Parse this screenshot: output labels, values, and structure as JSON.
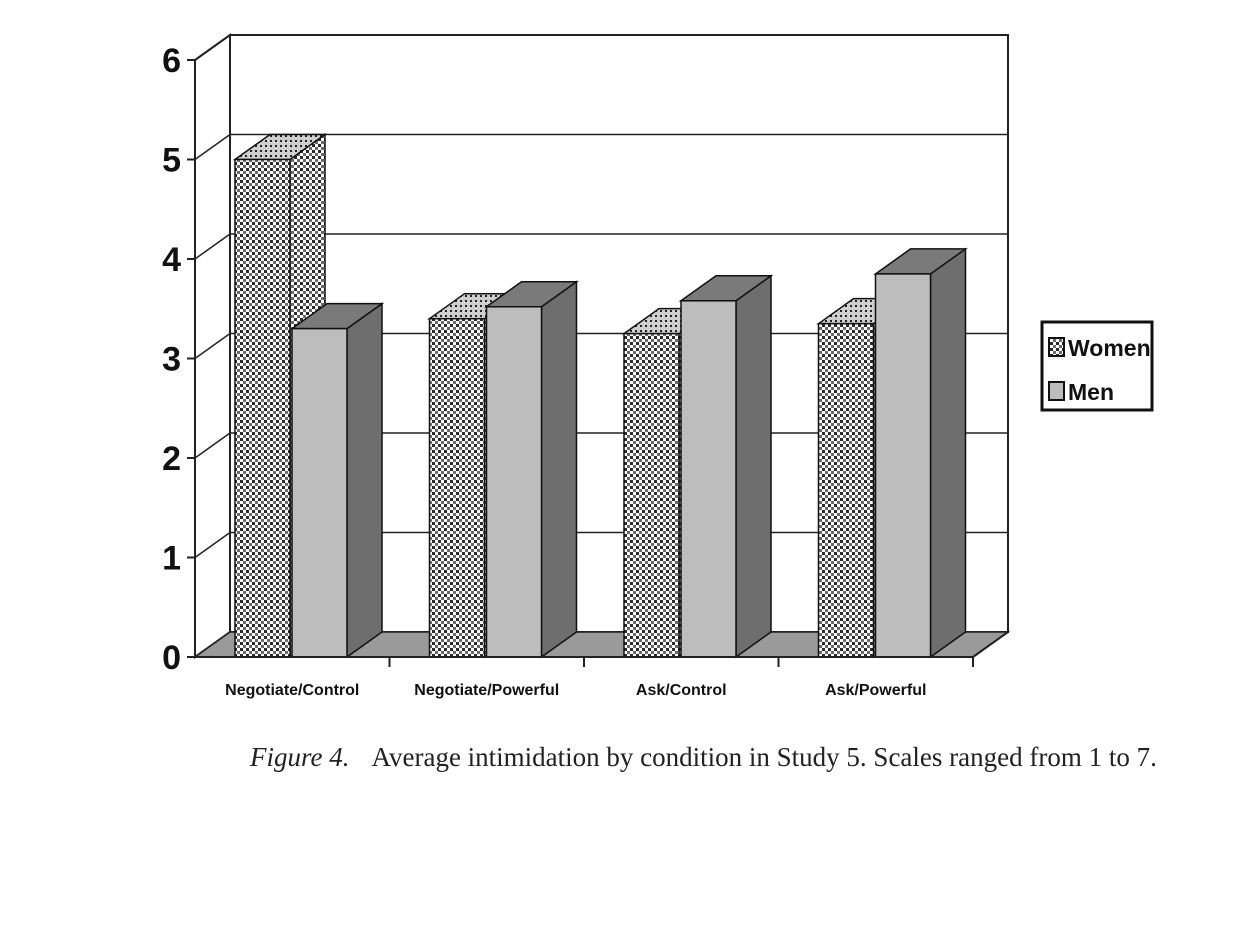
{
  "chart_data": {
    "type": "bar",
    "style": "3d-clustered-column",
    "categories": [
      "Negotiate/Control",
      "Negotiate/Powerful",
      "Ask/Control",
      "Ask/Powerful"
    ],
    "series": [
      {
        "name": "Women",
        "values": [
          5.0,
          3.4,
          3.25,
          3.35
        ],
        "pattern": "dotted",
        "color": "#ffffff"
      },
      {
        "name": "Men",
        "values": [
          3.3,
          3.52,
          3.58,
          3.85
        ],
        "pattern": "solid",
        "color": "#bdbdbd"
      }
    ],
    "ylim": [
      0,
      6
    ],
    "yticks": [
      "0",
      "1",
      "2",
      "3",
      "4",
      "5",
      "6"
    ],
    "grid": true,
    "legend_position": "right"
  },
  "caption": {
    "label": "Figure 4.",
    "text": "Average intimidation by condition in Study 5. Scales ranged from 1 to 7."
  },
  "colors": {
    "men_front": "#bdbdbd",
    "men_top": "#7a7a7a",
    "men_side": "#6e6e6e",
    "floor": "#9a9a9a",
    "axis": "#222222"
  }
}
